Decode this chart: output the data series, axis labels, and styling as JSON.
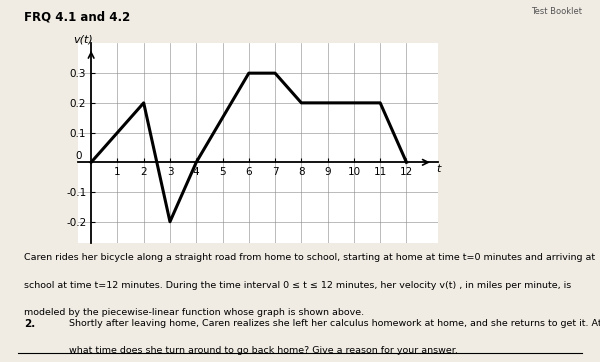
{
  "title": "FRQ 4.1 and 4.2",
  "top_right_label": "Test Booklet",
  "ylabel": "v(t)",
  "xlabel": "t",
  "graph_x": [
    0,
    2,
    3,
    4,
    6,
    7,
    8,
    10,
    11,
    12
  ],
  "graph_y": [
    0,
    0.2,
    -0.2,
    0,
    0.3,
    0.3,
    0.2,
    0.2,
    0.2,
    0
  ],
  "xlim": [
    -0.5,
    13.2
  ],
  "ylim": [
    -0.27,
    0.4
  ],
  "xticks": [
    1,
    2,
    3,
    4,
    5,
    6,
    7,
    8,
    9,
    10,
    11,
    12
  ],
  "yticks": [
    -0.2,
    -0.1,
    0.1,
    0.2,
    0.3
  ],
  "ytick_labels": [
    "-0.2",
    "-0.1",
    "0.1",
    "0.2",
    "0.3"
  ],
  "line_color": "#000000",
  "line_width": 2.2,
  "bg_color": "#f0ece4",
  "graph_bg": "#ffffff",
  "text_block_line1": "Caren rides her bicycle along a straight road from home to school, starting at home at time t=0 minutes and arriving at",
  "text_block_line2": "school at time t=12 minutes. During the time interval 0 ≤ t ≤ 12 minutes, her velocity v(t) , in miles per minute, is",
  "text_block_line3": "modeled by the piecewise-linear function whose graph is shown above.",
  "question_number": "2.",
  "question_text_line1": "Shortly after leaving home, Caren realizes she left her calculus homework at home, and she returns to get it. At",
  "question_text_line2": "what time does she turn around to go back home? Give a reason for your answer."
}
